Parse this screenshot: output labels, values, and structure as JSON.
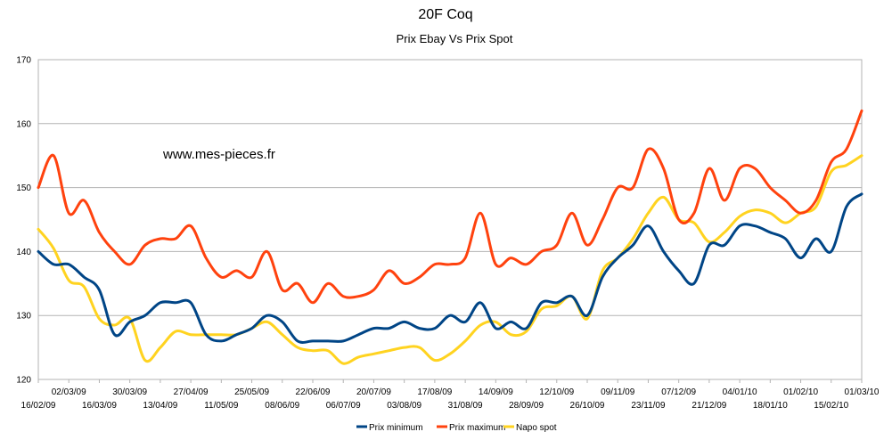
{
  "chart_data": {
    "type": "line",
    "title": "20F Coq",
    "subtitle": "Prix Ebay Vs Prix Spot",
    "watermark": "www.mes-pieces.fr",
    "xlabel": "",
    "ylabel": "",
    "ylim": [
      120,
      170
    ],
    "yticks": [
      120,
      130,
      140,
      150,
      160,
      170
    ],
    "grid": "horizontal",
    "legend_position": "bottom",
    "x_tick_labels": [
      "16/02/09",
      "02/03/09",
      "16/03/09",
      "30/03/09",
      "13/04/09",
      "27/04/09",
      "11/05/09",
      "25/05/09",
      "08/06/09",
      "22/06/09",
      "06/07/09",
      "20/07/09",
      "03/08/09",
      "17/08/09",
      "31/08/09",
      "14/09/09",
      "28/09/09",
      "12/10/09",
      "26/10/09",
      "09/11/09",
      "23/11/09",
      "07/12/09",
      "21/12/09",
      "04/01/10",
      "18/01/10",
      "01/02/10",
      "15/02/10",
      "01/03/10"
    ],
    "x": [
      "16/02/09",
      "23/02/09",
      "02/03/09",
      "09/03/09",
      "16/03/09",
      "23/03/09",
      "30/03/09",
      "06/04/09",
      "13/04/09",
      "20/04/09",
      "27/04/09",
      "04/05/09",
      "11/05/09",
      "18/05/09",
      "25/05/09",
      "01/06/09",
      "08/06/09",
      "15/06/09",
      "22/06/09",
      "29/06/09",
      "06/07/09",
      "13/07/09",
      "20/07/09",
      "27/07/09",
      "03/08/09",
      "10/08/09",
      "17/08/09",
      "24/08/09",
      "31/08/09",
      "07/09/09",
      "14/09/09",
      "21/09/09",
      "28/09/09",
      "05/10/09",
      "12/10/09",
      "19/10/09",
      "26/10/09",
      "02/11/09",
      "09/11/09",
      "16/11/09",
      "23/11/09",
      "30/11/09",
      "07/12/09",
      "14/12/09",
      "21/12/09",
      "28/12/09",
      "04/01/10",
      "11/01/10",
      "18/01/10",
      "25/01/10",
      "01/02/10",
      "08/02/10",
      "15/02/10",
      "22/02/10",
      "01/03/10"
    ],
    "series": [
      {
        "name": "Prix minimum",
        "color": "#004586",
        "values": [
          140,
          138,
          138,
          136,
          134,
          127,
          129,
          130,
          132,
          132,
          132,
          127,
          126,
          127,
          128,
          130,
          129,
          126,
          126,
          126,
          126,
          127,
          128,
          128,
          129,
          128,
          128,
          130,
          129,
          132,
          128,
          129,
          128,
          132,
          132,
          133,
          130,
          136,
          139,
          141,
          144,
          140,
          137,
          135,
          141,
          141,
          144,
          144,
          143,
          142,
          139,
          142,
          140,
          147,
          149
        ]
      },
      {
        "name": "Prix maximum",
        "color": "#ff420e",
        "values": [
          150,
          155,
          146,
          148,
          143,
          140,
          138,
          141,
          142,
          142,
          144,
          139,
          136,
          137,
          136,
          140,
          134,
          135,
          132,
          135,
          133,
          133,
          134,
          137,
          135,
          136,
          138,
          138,
          139,
          146,
          138,
          139,
          138,
          140,
          141,
          146,
          141,
          145,
          150,
          150,
          156,
          153,
          145,
          146,
          153,
          148,
          153,
          153,
          150,
          148,
          146,
          148,
          154,
          156,
          162
        ]
      },
      {
        "name": "Napo spot",
        "color": "#ffd320",
        "values": [
          143.5,
          140.5,
          135.5,
          134.5,
          129.5,
          128.5,
          129.5,
          123,
          125,
          127.5,
          127,
          127,
          127,
          127,
          128,
          129,
          127,
          125,
          124.5,
          124.5,
          122.5,
          123.5,
          124,
          124.5,
          125,
          125,
          123,
          124,
          126,
          128.5,
          129,
          127,
          127.5,
          131,
          131.5,
          133,
          129.5,
          137,
          139,
          142,
          146,
          148.5,
          145,
          144.5,
          141.5,
          143,
          145.5,
          146.5,
          146,
          144.5,
          146,
          147,
          152.5,
          153.5,
          155
        ]
      }
    ]
  }
}
